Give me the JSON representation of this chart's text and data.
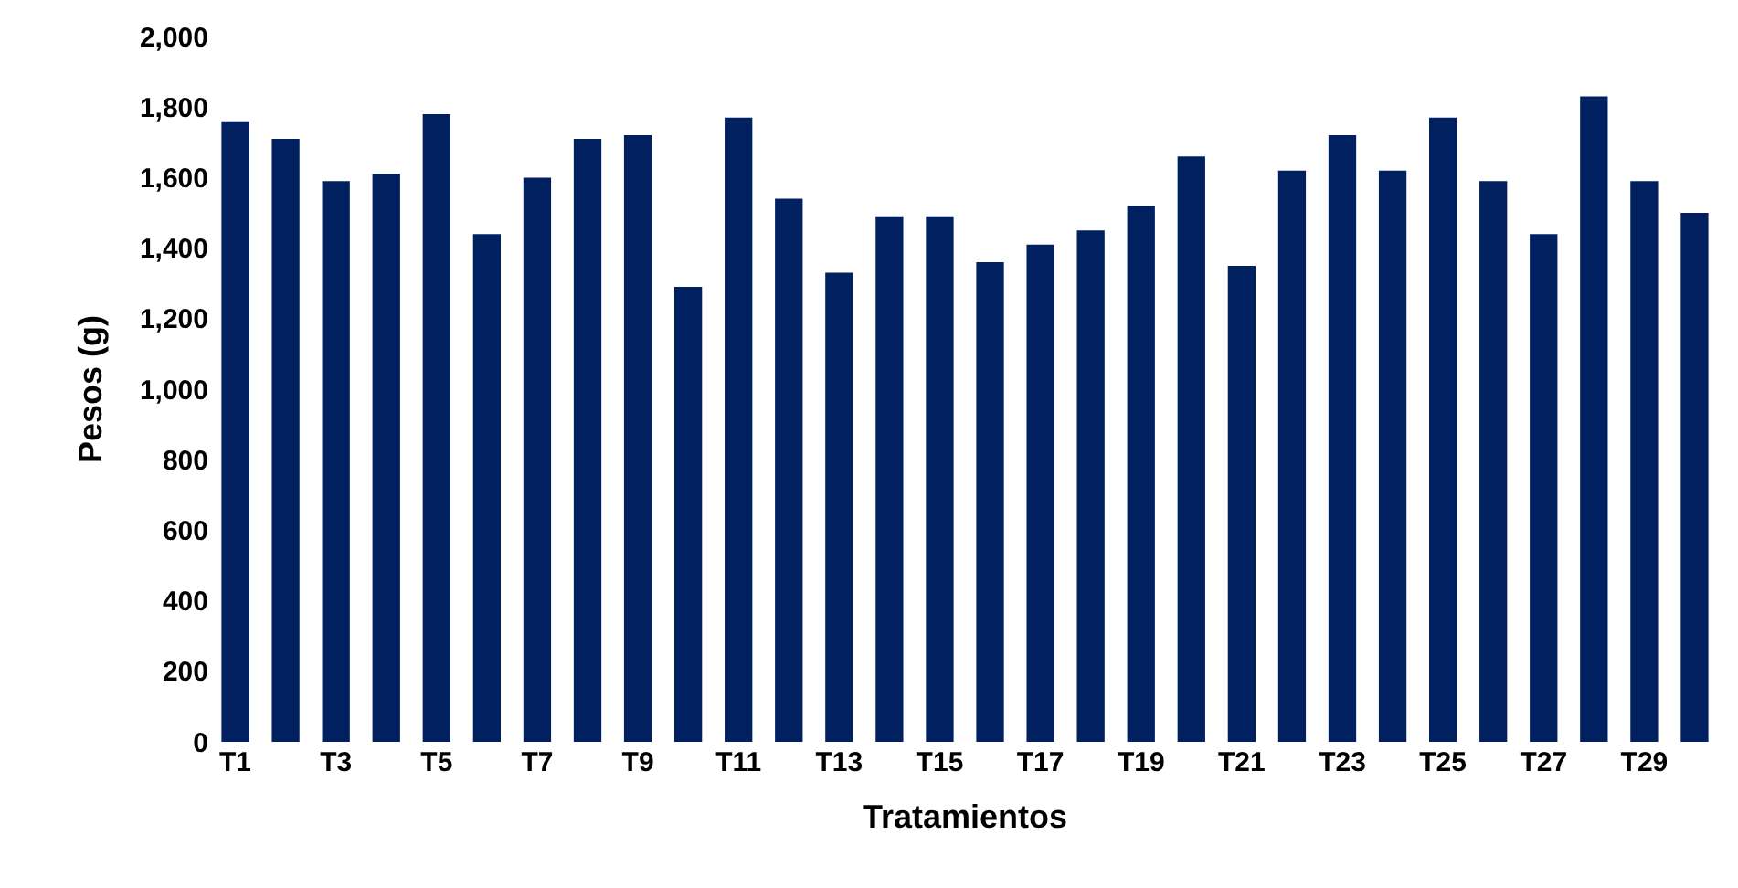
{
  "chart_data": {
    "type": "bar",
    "xlabel": "Tratamientos",
    "ylabel": "Pesos (g)",
    "categories": [
      "T1",
      null,
      "T3",
      null,
      "T5",
      null,
      "T7",
      null,
      "T9",
      null,
      "T11",
      null,
      "T13",
      null,
      "T15",
      null,
      "T17",
      null,
      "T19",
      null,
      "T21",
      null,
      "T23",
      null,
      "T25",
      null,
      "T27",
      null,
      "T29",
      null
    ],
    "values": [
      1760,
      1710,
      1590,
      1610,
      1780,
      1440,
      1600,
      1710,
      1720,
      1290,
      1770,
      1540,
      1330,
      1490,
      1490,
      1360,
      1410,
      1450,
      1520,
      1660,
      1350,
      1620,
      1720,
      1620,
      1770,
      1590,
      1440,
      1830,
      1590,
      1500
    ],
    "color": "#002060",
    "ylim": [
      0,
      2000
    ],
    "yticks": [
      {
        "value": 0,
        "label": "0"
      },
      {
        "value": 200,
        "label": "200"
      },
      {
        "value": 400,
        "label": "400"
      },
      {
        "value": 600,
        "label": "600"
      },
      {
        "value": 800,
        "label": "800"
      },
      {
        "value": 1000,
        "label": "1,000"
      },
      {
        "value": 1200,
        "label": "1,200"
      },
      {
        "value": 1400,
        "label": "1,400"
      },
      {
        "value": 1600,
        "label": "1,600"
      },
      {
        "value": 1800,
        "label": "1,800"
      },
      {
        "value": 2000,
        "label": "2,000"
      }
    ]
  }
}
